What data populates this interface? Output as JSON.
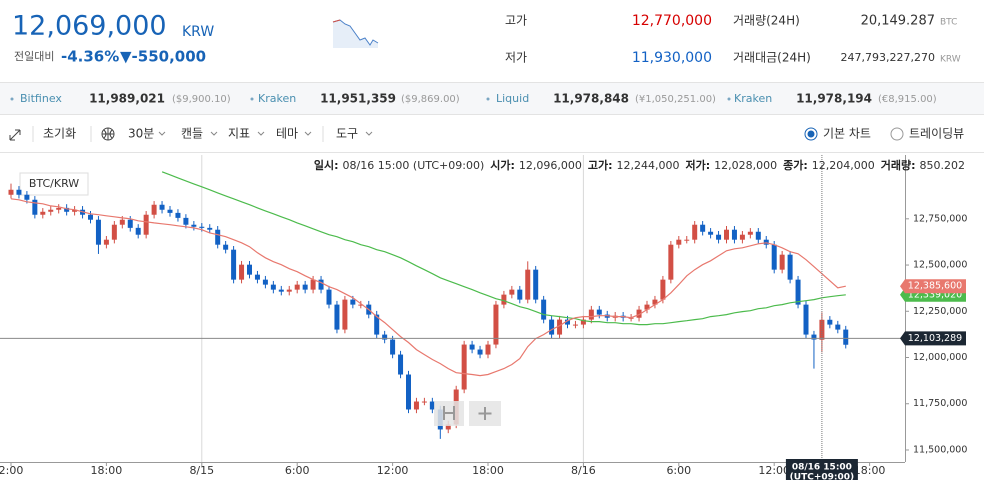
{
  "header": {
    "price": "12,069,000",
    "currency": "KRW",
    "change_label": "전일대비",
    "change_rate": "-4.36%",
    "change_amount": "▼-550,000"
  },
  "stats": [
    {
      "label": "고가",
      "value": "12,770,000"
    },
    {
      "label": "저가",
      "value": "11,930,000"
    },
    {
      "label": "거래량(24H)",
      "value": "20,149.287",
      "unit": "BTC"
    },
    {
      "label": "거래대금(24H)",
      "value": "247,793,227,270",
      "unit": "KRW"
    }
  ],
  "exchanges": [
    {
      "name": "Bitfinex",
      "price": "11,989,021",
      "foreign": "($9,900.10)"
    },
    {
      "name": "Kraken",
      "price": "11,951,359",
      "foreign": "($9,869.00)"
    },
    {
      "name": "Liquid",
      "price": "11,978,848",
      "foreign": "(¥1,050,251.00)"
    },
    {
      "name": "Kraken",
      "price": "11,978,194",
      "foreign": "(€8,915.00)"
    }
  ],
  "toolbar": {
    "reset": "초기화",
    "interval": "30분",
    "chart_type": "캔들",
    "indicators": "지표",
    "theme": "테마",
    "tools": "도구",
    "basic_chart": "기본 차트",
    "tradingview": "트레이딩뷰"
  },
  "ohlc_info": [
    {
      "label": "일시:",
      "value": "08/16 15:00 (UTC+09:00)"
    },
    {
      "label": "시가:",
      "value": "12,096,000"
    },
    {
      "label": "고가:",
      "value": "12,244,000"
    },
    {
      "label": "저가:",
      "value": "12,028,000"
    },
    {
      "label": "종가:",
      "value": "12,204,000"
    },
    {
      "label": "거래량:",
      "value": "850.202"
    }
  ],
  "chart_data": {
    "type": "candlestick",
    "symbol": "BTC/KRW",
    "up_color": "#d24f45",
    "down_color": "#1261c4",
    "categories": [
      "2:00",
      null,
      null,
      null,
      null,
      null,
      null,
      null,
      null,
      null,
      null,
      null,
      "18:00",
      null,
      null,
      null,
      null,
      null,
      null,
      null,
      null,
      null,
      null,
      null,
      "8/15",
      null,
      null,
      null,
      null,
      null,
      null,
      null,
      null,
      null,
      null,
      null,
      "6:00",
      null,
      null,
      null,
      null,
      null,
      null,
      null,
      null,
      null,
      null,
      null,
      "12:00",
      null,
      null,
      null,
      null,
      null,
      null,
      null,
      null,
      null,
      null,
      null,
      "18:00",
      null,
      null,
      null,
      null,
      null,
      null,
      null,
      null,
      null,
      null,
      null,
      "8/16",
      null,
      null,
      null,
      null,
      null,
      null,
      null,
      null,
      null,
      null,
      null,
      "6:00",
      null,
      null,
      null,
      null,
      null,
      null,
      null,
      null,
      null,
      null,
      null,
      "12:00",
      null,
      null,
      null,
      null,
      null,
      null,
      null,
      null,
      null,
      null,
      null,
      "18:00"
    ],
    "open": [
      12880000,
      12907000,
      12880000,
      12853000,
      12772000,
      12788000,
      12799000,
      12809000,
      12788000,
      12799000,
      12772000,
      12745000,
      12610000,
      12637000,
      12718000,
      12745000,
      12701000,
      12664000,
      12772000,
      12826000,
      12799000,
      12782000,
      12755000,
      12718000,
      12707000,
      12701000,
      12691000,
      12610000,
      12583000,
      12421000,
      12502000,
      12448000,
      12421000,
      12394000,
      12367000,
      12356000,
      12367000,
      12394000,
      12367000,
      12421000,
      12367000,
      12286000,
      12151000,
      12313000,
      12286000,
      12286000,
      12232000,
      12124000,
      12097000,
      12016000,
      11908000,
      11719000,
      11762000,
      11762000,
      11719000,
      11611000,
      11638000,
      11827000,
      12070000,
      12043000,
      12016000,
      12070000,
      12286000,
      12340000,
      12367000,
      12313000,
      12475000,
      12313000,
      12205000,
      12124000,
      12205000,
      12178000,
      12178000,
      12205000,
      12259000,
      12232000,
      12215000,
      12226000,
      12215000,
      12215000,
      12259000,
      12286000,
      12313000,
      12421000,
      12610000,
      12637000,
      12637000,
      12718000,
      12680000,
      12664000,
      12637000,
      12691000,
      12637000,
      12664000,
      12680000,
      12637000,
      12610000,
      12475000,
      12556000,
      12421000,
      12286000,
      12124000,
      12096000,
      12204000,
      12178000,
      12151000,
      null,
      null,
      null
    ],
    "high": [
      12940000,
      12927000,
      12900000,
      12873000,
      12808000,
      12819000,
      12829000,
      12829000,
      12819000,
      12819000,
      12792000,
      12765000,
      12657000,
      12738000,
      12765000,
      12765000,
      12721000,
      12792000,
      12846000,
      12846000,
      12819000,
      12802000,
      12775000,
      12738000,
      12727000,
      12721000,
      12711000,
      12630000,
      12603000,
      12522000,
      12522000,
      12468000,
      12441000,
      12414000,
      12387000,
      12387000,
      12414000,
      12414000,
      12441000,
      12441000,
      12387000,
      12306000,
      12333000,
      12333000,
      12306000,
      12306000,
      12252000,
      12144000,
      12117000,
      12036000,
      11928000,
      11782000,
      11782000,
      11782000,
      11739000,
      11658000,
      11847000,
      12090000,
      12090000,
      12063000,
      12090000,
      12306000,
      12360000,
      12387000,
      12387000,
      12520000,
      12495000,
      12333000,
      12225000,
      12225000,
      12225000,
      12198000,
      12225000,
      12279000,
      12279000,
      12252000,
      12246000,
      12246000,
      12235000,
      12279000,
      12306000,
      12333000,
      12441000,
      12630000,
      12657000,
      12657000,
      12738000,
      12738000,
      12700000,
      12684000,
      12711000,
      12711000,
      12684000,
      12700000,
      12700000,
      12657000,
      12630000,
      12576000,
      12576000,
      12441000,
      12306000,
      12144000,
      12244000,
      12224000,
      12198000,
      12171000,
      null,
      null,
      null
    ],
    "low": [
      12860000,
      12860000,
      12833000,
      12752000,
      12752000,
      12768000,
      12779000,
      12768000,
      12768000,
      12752000,
      12725000,
      12560000,
      12590000,
      12617000,
      12698000,
      12681000,
      12644000,
      12644000,
      12752000,
      12779000,
      12762000,
      12735000,
      12698000,
      12687000,
      12681000,
      12671000,
      12590000,
      12563000,
      12401000,
      12401000,
      12428000,
      12401000,
      12374000,
      12347000,
      12336000,
      12336000,
      12347000,
      12347000,
      12347000,
      12347000,
      12266000,
      12131000,
      12131000,
      12266000,
      12266000,
      12212000,
      12104000,
      12077000,
      11996000,
      11888000,
      11699000,
      11699000,
      11742000,
      11699000,
      11560000,
      11591000,
      11618000,
      11807000,
      12023000,
      11996000,
      11996000,
      12050000,
      12266000,
      12320000,
      12293000,
      12293000,
      12293000,
      12185000,
      12104000,
      12104000,
      12158000,
      12158000,
      12158000,
      12185000,
      12212000,
      12195000,
      12195000,
      12195000,
      12195000,
      12195000,
      12239000,
      12266000,
      12293000,
      12401000,
      12590000,
      12617000,
      12617000,
      12660000,
      12644000,
      12617000,
      12617000,
      12617000,
      12617000,
      12644000,
      12617000,
      12590000,
      12455000,
      12455000,
      12401000,
      12266000,
      12104000,
      11940000,
      12028000,
      12158000,
      12131000,
      12049000,
      null,
      null,
      null
    ],
    "close": [
      12907000,
      12880000,
      12853000,
      12772000,
      12788000,
      12799000,
      12809000,
      12788000,
      12799000,
      12772000,
      12745000,
      12610000,
      12637000,
      12718000,
      12745000,
      12701000,
      12664000,
      12772000,
      12826000,
      12799000,
      12782000,
      12755000,
      12718000,
      12707000,
      12701000,
      12691000,
      12610000,
      12583000,
      12421000,
      12502000,
      12448000,
      12421000,
      12394000,
      12367000,
      12356000,
      12367000,
      12394000,
      12367000,
      12421000,
      12367000,
      12286000,
      12151000,
      12313000,
      12286000,
      12286000,
      12232000,
      12124000,
      12097000,
      12016000,
      11908000,
      11719000,
      11762000,
      11762000,
      11719000,
      11611000,
      11638000,
      11827000,
      12070000,
      12043000,
      12016000,
      12070000,
      12286000,
      12340000,
      12367000,
      12313000,
      12475000,
      12313000,
      12205000,
      12124000,
      12205000,
      12178000,
      12178000,
      12205000,
      12259000,
      12232000,
      12215000,
      12226000,
      12215000,
      12215000,
      12259000,
      12286000,
      12313000,
      12421000,
      12610000,
      12637000,
      12637000,
      12718000,
      12680000,
      12664000,
      12637000,
      12691000,
      12637000,
      12664000,
      12680000,
      12637000,
      12610000,
      12475000,
      12556000,
      12421000,
      12286000,
      12124000,
      12097000,
      12204000,
      12178000,
      12151000,
      12069000,
      null,
      null,
      null
    ],
    "series": [
      {
        "color": "#4cbb4c",
        "end_label": "12,339,020",
        "values": [
          null,
          null,
          null,
          null,
          null,
          null,
          null,
          null,
          null,
          null,
          null,
          null,
          null,
          null,
          null,
          null,
          null,
          null,
          null,
          13004000,
          12988000,
          12971000,
          12955000,
          12939000,
          12923000,
          12907000,
          12890000,
          12874000,
          12858000,
          12842000,
          12826000,
          12809000,
          12793000,
          12777000,
          12761000,
          12745000,
          12728000,
          12712000,
          12696000,
          12680000,
          12664000,
          12653000,
          12637000,
          12626000,
          12610000,
          12599000,
          12583000,
          12572000,
          12556000,
          12539000,
          12518000,
          12496000,
          12475000,
          12453000,
          12431000,
          12415000,
          12399000,
          12383000,
          12367000,
          12350000,
          12334000,
          12318000,
          12307000,
          12291000,
          12275000,
          12264000,
          12248000,
          12232000,
          12226000,
          12221000,
          12215000,
          12210000,
          12199000,
          12194000,
          12194000,
          12188000,
          12188000,
          12183000,
          12183000,
          12178000,
          12178000,
          12183000,
          12183000,
          12188000,
          12194000,
          12199000,
          12205000,
          12210000,
          12221000,
          12226000,
          12232000,
          12242000,
          12248000,
          12253000,
          12264000,
          12269000,
          12280000,
          12286000,
          12296000,
          12302000,
          12307000,
          12313000,
          12323000,
          12329000,
          12334000,
          12339020,
          null,
          null,
          null
        ]
      },
      {
        "color": "#e8786e",
        "end_label": "12,385,600",
        "values": [
          12858000,
          12853000,
          12842000,
          12836000,
          12831000,
          12820000,
          12815000,
          12804000,
          12799000,
          12788000,
          12777000,
          12772000,
          12766000,
          12761000,
          12755000,
          12750000,
          12739000,
          12734000,
          12728000,
          12723000,
          12718000,
          12712000,
          12707000,
          12701000,
          12691000,
          12674000,
          12664000,
          12653000,
          12637000,
          12620000,
          12599000,
          12566000,
          12539000,
          12518000,
          12502000,
          12480000,
          12464000,
          12442000,
          12421000,
          12405000,
          12383000,
          12367000,
          12345000,
          12323000,
          12291000,
          12259000,
          12221000,
          12189000,
          12151000,
          12113000,
          12081000,
          12043000,
          12016000,
          11989000,
          11967000,
          11940000,
          11918000,
          11913000,
          11908000,
          11902000,
          11908000,
          11924000,
          11940000,
          11962000,
          11994000,
          12059000,
          12102000,
          12124000,
          12151000,
          12172000,
          12199000,
          12215000,
          12221000,
          12221000,
          12226000,
          12226000,
          12221000,
          12221000,
          12215000,
          12232000,
          12259000,
          12286000,
          12313000,
          12350000,
          12394000,
          12442000,
          12475000,
          12502000,
          12523000,
          12550000,
          12577000,
          12588000,
          12593000,
          12604000,
          12615000,
          12620000,
          12610000,
          12593000,
          12572000,
          12561000,
          12529000,
          12491000,
          12453000,
          12415000,
          12377000,
          12385600,
          null,
          null,
          null
        ]
      }
    ],
    "price_line": {
      "value": 12103289,
      "label": "12,103,289"
    },
    "hover_index": 102,
    "hover_date": "08/16 15:00",
    "hover_tz": "(UTC+09:00)",
    "ylim": [
      11435000,
      13095000
    ],
    "yticks": [
      {
        "value": 11500000,
        "label": "11,500,000"
      },
      {
        "value": 11750000,
        "label": "11,750,000"
      },
      {
        "value": 12000000,
        "label": "12,000,000"
      },
      {
        "value": 12250000,
        "label": "12,250,000"
      },
      {
        "value": 12500000,
        "label": "12,500,000"
      },
      {
        "value": 12750000,
        "label": "12,750,000"
      }
    ],
    "grid": false
  }
}
